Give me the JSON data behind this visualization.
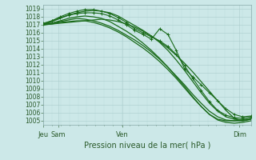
{
  "xlabel": "Pression niveau de la mer( hPa )",
  "bg_color": "#cce8e8",
  "grid_major_color": "#aacccc",
  "grid_minor_color": "#bbdddd",
  "line_color": "#1a6b1a",
  "ylim": [
    1004.5,
    1019.5
  ],
  "yticks": [
    1005,
    1006,
    1007,
    1008,
    1009,
    1010,
    1011,
    1012,
    1013,
    1014,
    1015,
    1016,
    1017,
    1018,
    1019
  ],
  "xtick_positions": [
    0.0,
    0.072,
    0.38,
    0.945
  ],
  "xtick_labels": [
    "Jeu",
    "Sam",
    "Ven",
    "Dim"
  ],
  "series": [
    [
      1017.0,
      1017.1,
      1017.2,
      1017.3,
      1017.4,
      1017.5,
      1017.6,
      1017.7,
      1017.6,
      1017.4,
      1017.1,
      1016.7,
      1016.2,
      1015.6,
      1014.9,
      1014.1,
      1013.2,
      1012.2,
      1011.1,
      1009.9,
      1008.7,
      1007.5,
      1006.3,
      1005.3,
      1005.0,
      1005.2
    ],
    [
      1017.0,
      1017.2,
      1017.5,
      1017.8,
      1018.0,
      1018.1,
      1018.0,
      1017.8,
      1017.4,
      1016.8,
      1016.2,
      1015.5,
      1014.7,
      1013.8,
      1012.8,
      1011.7,
      1010.5,
      1009.3,
      1008.0,
      1006.8,
      1005.8,
      1005.2,
      1005.0,
      1005.0,
      1005.1,
      1005.3
    ],
    [
      1017.1,
      1017.5,
      1018.0,
      1018.4,
      1018.7,
      1018.9,
      1018.9,
      1018.7,
      1018.4,
      1017.9,
      1017.3,
      1016.5,
      1016.0,
      1015.5,
      1015.0,
      1014.3,
      1013.3,
      1011.9,
      1010.3,
      1008.8,
      1007.4,
      1006.3,
      1005.7,
      1005.4,
      1005.3,
      1005.5
    ],
    [
      1017.0,
      1017.4,
      1017.8,
      1018.2,
      1018.5,
      1018.7,
      1018.8,
      1018.7,
      1018.5,
      1018.1,
      1017.5,
      1016.9,
      1016.3,
      1015.6,
      1014.8,
      1013.8,
      1012.6,
      1011.3,
      1009.9,
      1008.5,
      1007.2,
      1006.2,
      1005.5,
      1005.2,
      1005.1,
      1005.3
    ],
    [
      1017.2,
      1017.5,
      1017.9,
      1018.2,
      1018.4,
      1018.5,
      1018.5,
      1018.4,
      1018.1,
      1017.6,
      1017.0,
      1016.3,
      1015.8,
      1015.2,
      1016.5,
      1015.8,
      1013.8,
      1011.5,
      1010.5,
      1009.5,
      1008.5,
      1007.5,
      1006.5,
      1005.8,
      1005.5,
      1005.6
    ],
    [
      1017.1,
      1017.2,
      1017.4,
      1017.6,
      1017.8,
      1017.7,
      1017.5,
      1017.2,
      1016.8,
      1016.3,
      1015.7,
      1015.1,
      1014.4,
      1013.6,
      1012.7,
      1011.7,
      1010.6,
      1009.5,
      1008.3,
      1007.2,
      1006.2,
      1005.5,
      1005.1,
      1005.0,
      1005.0,
      1005.2
    ],
    [
      1017.0,
      1017.1,
      1017.3,
      1017.4,
      1017.5,
      1017.5,
      1017.3,
      1017.0,
      1016.6,
      1016.1,
      1015.5,
      1014.8,
      1014.1,
      1013.3,
      1012.4,
      1011.4,
      1010.3,
      1009.1,
      1007.9,
      1006.8,
      1005.8,
      1005.1,
      1004.8,
      1004.7,
      1004.8,
      1005.0
    ]
  ],
  "marker_series": [
    2,
    4
  ],
  "n_points": 26,
  "figsize": [
    3.2,
    2.0
  ],
  "dpi": 100
}
